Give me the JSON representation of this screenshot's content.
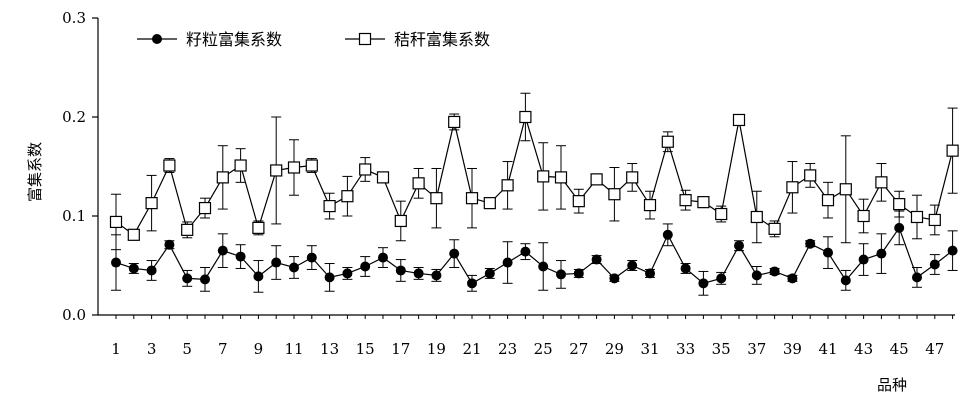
{
  "chart_data": {
    "type": "line",
    "title": "",
    "xlabel": "品种",
    "ylabel": "富集系数",
    "x": [
      1,
      2,
      3,
      4,
      5,
      6,
      7,
      8,
      9,
      10,
      11,
      12,
      13,
      14,
      15,
      16,
      17,
      18,
      19,
      20,
      21,
      22,
      23,
      24,
      25,
      26,
      27,
      28,
      29,
      30,
      31,
      32,
      33,
      34,
      35,
      36,
      37,
      38,
      39,
      40,
      41,
      42,
      43,
      44,
      45,
      46,
      47,
      48
    ],
    "x_tick_labels": [
      "1",
      "3",
      "5",
      "7",
      "9",
      "11",
      "13",
      "15",
      "17",
      "19",
      "21",
      "23",
      "25",
      "27",
      "29",
      "31",
      "33",
      "35",
      "37",
      "39",
      "41",
      "43",
      "45",
      "47"
    ],
    "y_tick_labels": [
      "0.0",
      "0.1",
      "0.2",
      "0.3"
    ],
    "ylim": [
      0,
      0.3
    ],
    "grid": false,
    "legend_position": "top-left",
    "series": [
      {
        "name": "籽粒富集系数",
        "marker": "filled-circle",
        "values": [
          0.053,
          0.047,
          0.045,
          0.071,
          0.037,
          0.036,
          0.065,
          0.059,
          0.039,
          0.053,
          0.048,
          0.058,
          0.038,
          0.042,
          0.049,
          0.058,
          0.045,
          0.042,
          0.04,
          0.062,
          0.032,
          0.042,
          0.053,
          0.064,
          0.049,
          0.041,
          0.042,
          0.056,
          0.037,
          0.05,
          0.042,
          0.081,
          0.047,
          0.032,
          0.037,
          0.07,
          0.04,
          0.044,
          0.037,
          0.072,
          0.063,
          0.035,
          0.056,
          0.062,
          0.088,
          0.038,
          0.051,
          0.065
        ],
        "errors": [
          0.028,
          0.005,
          0.01,
          0.004,
          0.008,
          0.012,
          0.017,
          0.012,
          0.016,
          0.017,
          0.011,
          0.012,
          0.014,
          0.006,
          0.01,
          0.01,
          0.011,
          0.006,
          0.006,
          0.014,
          0.008,
          0.005,
          0.021,
          0.008,
          0.024,
          0.014,
          0.004,
          0.004,
          0.003,
          0.005,
          0.004,
          0.011,
          0.005,
          0.012,
          0.006,
          0.005,
          0.009,
          0.003,
          0.003,
          0.003,
          0.016,
          0.01,
          0.016,
          0.02,
          0.017,
          0.01,
          0.01,
          0.02
        ]
      },
      {
        "name": "秸秆富集系数",
        "marker": "open-square",
        "values": [
          0.094,
          0.081,
          0.113,
          0.151,
          0.086,
          0.108,
          0.139,
          0.151,
          0.088,
          0.146,
          0.149,
          0.151,
          0.11,
          0.12,
          0.147,
          0.139,
          0.095,
          0.133,
          0.118,
          0.195,
          0.118,
          0.113,
          0.131,
          0.2,
          0.14,
          0.139,
          0.115,
          0.137,
          0.122,
          0.139,
          0.111,
          0.175,
          0.116,
          0.114,
          0.102,
          0.197,
          0.099,
          0.087,
          0.129,
          0.141,
          0.116,
          0.127,
          0.1,
          0.134,
          0.112,
          0.099,
          0.096,
          0.166
        ],
        "errors": [
          0.028,
          0.0,
          0.028,
          0.007,
          0.008,
          0.01,
          0.032,
          0.017,
          0.007,
          0.054,
          0.028,
          0.007,
          0.013,
          0.02,
          0.012,
          0.003,
          0.02,
          0.015,
          0.03,
          0.008,
          0.03,
          0.0,
          0.024,
          0.024,
          0.034,
          0.032,
          0.012,
          0.003,
          0.027,
          0.014,
          0.014,
          0.01,
          0.01,
          0.005,
          0.008,
          0.003,
          0.026,
          0.008,
          0.026,
          0.012,
          0.018,
          0.054,
          0.017,
          0.019,
          0.013,
          0.022,
          0.015,
          0.043
        ]
      }
    ]
  }
}
